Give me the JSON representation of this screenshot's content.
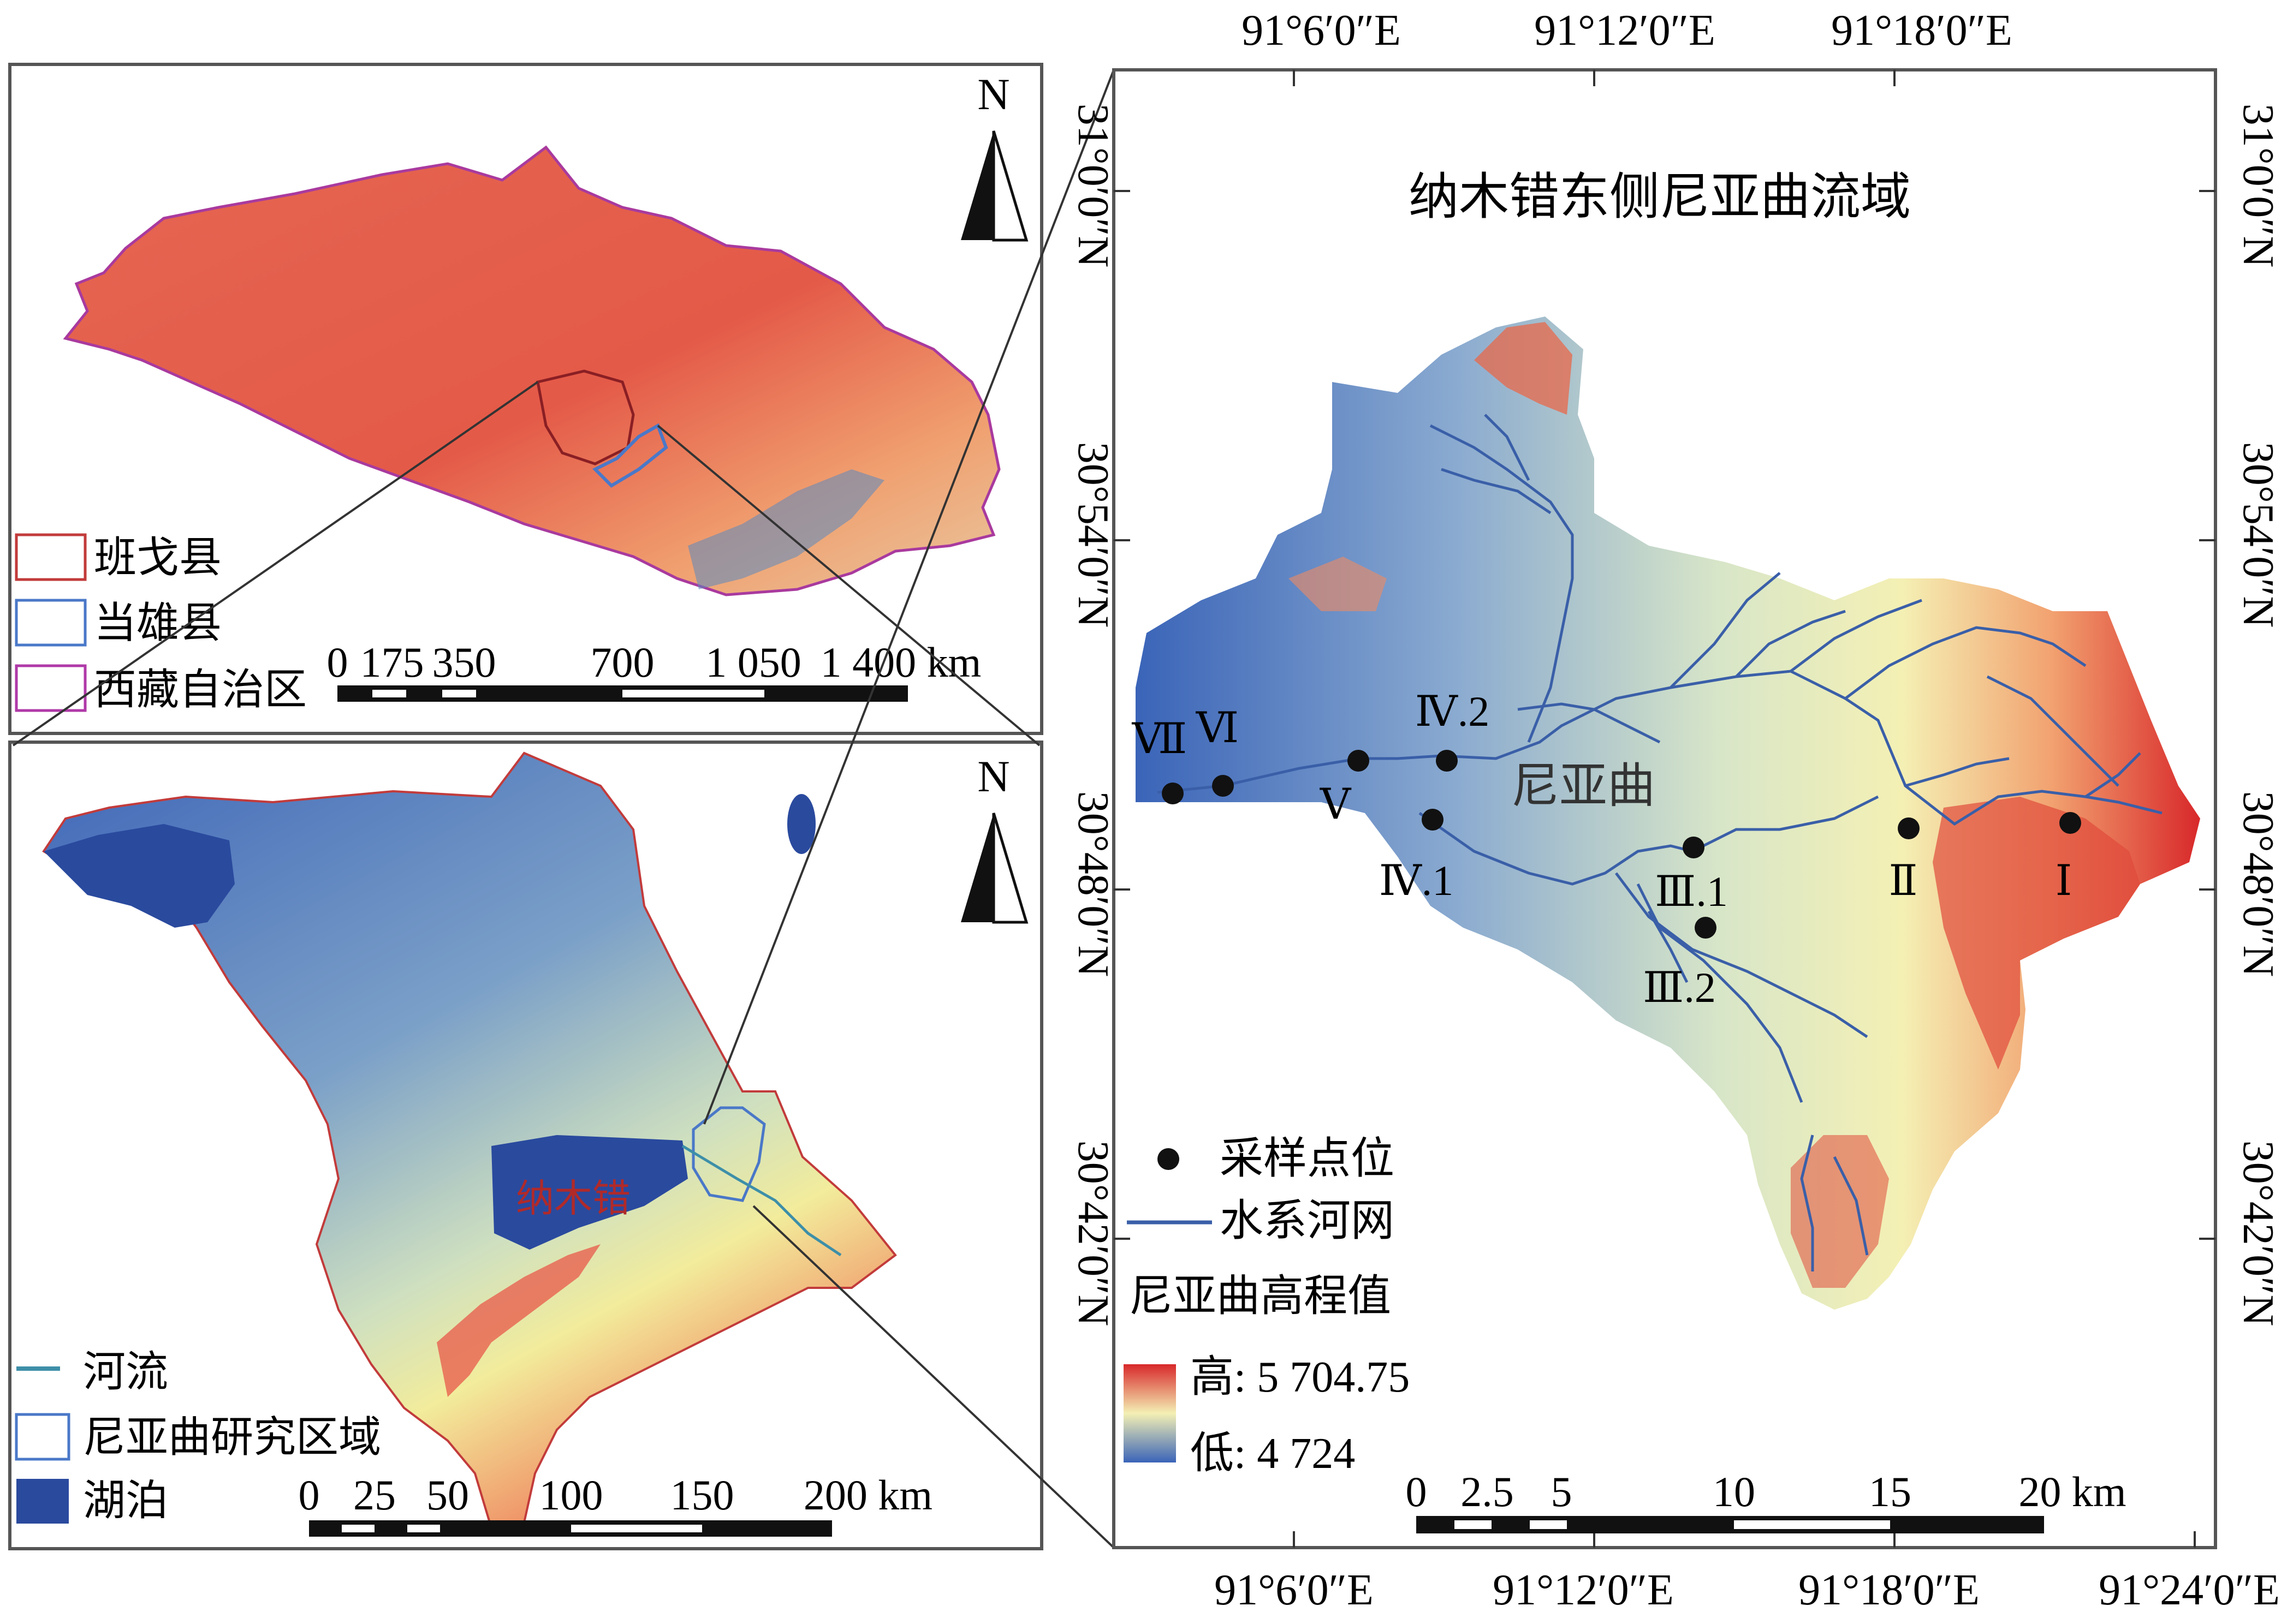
{
  "tibet_panel": {
    "north_label": "N",
    "legend": [
      {
        "label": "班戈县",
        "color": "#c23b3b"
      },
      {
        "label": "当雄县",
        "color": "#4a78c8"
      },
      {
        "label": "西藏自治区",
        "color": "#b03aa8"
      }
    ],
    "scale_labels": [
      "0",
      "175",
      "350",
      "700",
      "1 050",
      "1 400 km"
    ]
  },
  "county_panel": {
    "north_label": "N",
    "lake_label": "纳木错",
    "legend": [
      {
        "label": "河流",
        "color": "#3d8fa8"
      },
      {
        "label": "尼亚曲研究区域",
        "color": "#4a78c8"
      },
      {
        "label": "湖泊",
        "color": "#2a4a9e"
      }
    ],
    "scale_labels": [
      "0",
      "25",
      "50",
      "100",
      "150",
      "200 km"
    ]
  },
  "basin_panel": {
    "title": "纳木错东侧尼亚曲流域",
    "river_label": "尼亚曲",
    "top_lon_labels": [
      "91°6′0″E",
      "91°12′0″E",
      "91°18′0″E"
    ],
    "bottom_lon_labels": [
      "91°6′0″E",
      "91°12′0″E",
      "91°18′0″E",
      "91°24′0″E"
    ],
    "left_lat_labels": [
      "31°0′0″N",
      "30°54′0″N",
      "30°48′0″N",
      "30°42′0″N"
    ],
    "right_lat_labels": [
      "31°0′0″N",
      "30°54′0″N",
      "30°48′0″N",
      "30°42′0″N"
    ],
    "sampling_points": [
      "Ⅰ",
      "Ⅱ",
      "Ⅲ.1",
      "Ⅲ.2",
      "Ⅳ.1",
      "Ⅳ.2",
      "Ⅴ",
      "Ⅵ",
      "Ⅶ"
    ],
    "legend": {
      "sample_label": "采样点位",
      "river_label": "水系河网",
      "elevation_title": "尼亚曲高程值",
      "high_label": "高: 5 704.75",
      "low_label": "低: 4 724"
    },
    "scale_labels": [
      "0",
      "2.5",
      "5",
      "10",
      "15",
      "20 km"
    ],
    "colors": {
      "low": "#3a64b8",
      "mid": "#f4f0b4",
      "high": "#d8282a",
      "river": "#3a5fa8"
    }
  }
}
